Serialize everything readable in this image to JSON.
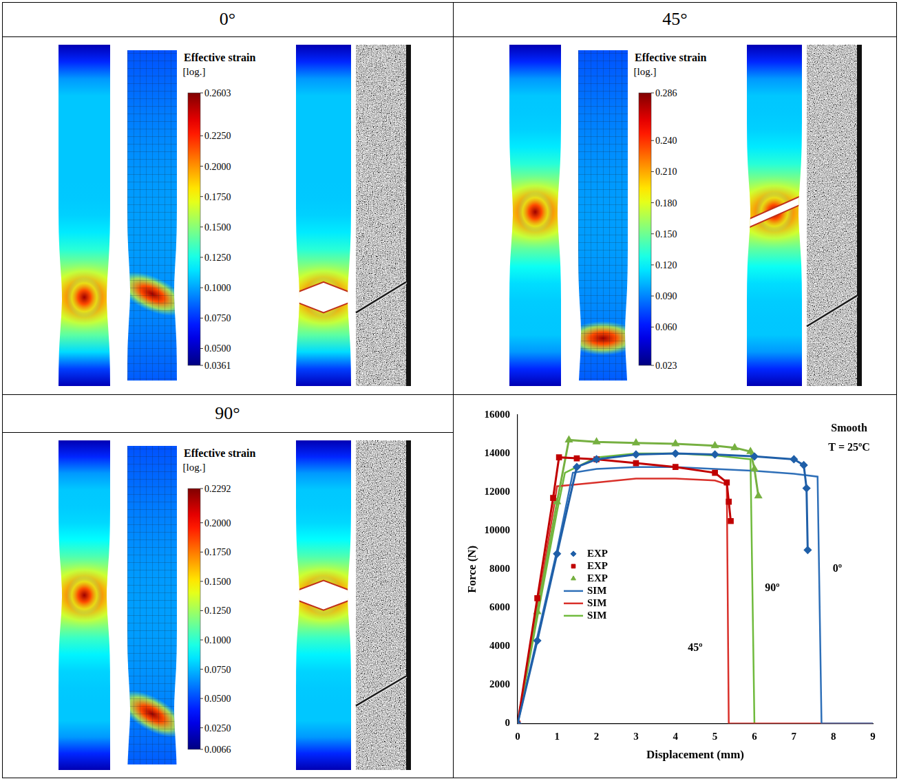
{
  "panels": [
    {
      "title": "0°",
      "colorbar": {
        "title": "Effective strain",
        "unit": "[log.]",
        "range": [
          0.0361,
          0.2603
        ],
        "ticks": [
          0.0361,
          {
            "value": 0.05,
            "label": "0.0500"
          },
          {
            "value": 0.075,
            "label": "0.0750"
          },
          {
            "value": 0.1,
            "label": "0.1000"
          },
          {
            "value": 0.125,
            "label": "0.1250"
          },
          {
            "value": 0.15,
            "label": "0.1500"
          },
          {
            "value": 0.175,
            "label": "0.1750"
          },
          {
            "value": 0.2,
            "label": "0.2000"
          },
          {
            "value": 0.225,
            "label": "0.2250"
          },
          0.2603
        ]
      }
    },
    {
      "title": "45°",
      "colorbar": {
        "title": "Effective strain",
        "unit": "[log.]",
        "range": [
          0.023,
          0.286
        ],
        "ticks": [
          0.023,
          {
            "value": 0.06,
            "label": "0.060"
          },
          {
            "value": 0.09,
            "label": "0.090"
          },
          {
            "value": 0.12,
            "label": "0.120"
          },
          {
            "value": 0.15,
            "label": "0.150"
          },
          {
            "value": 0.18,
            "label": "0.180"
          },
          {
            "value": 0.21,
            "label": "0.210"
          },
          {
            "value": 0.24,
            "label": "0.240"
          },
          0.286
        ]
      }
    },
    {
      "title": "90°",
      "colorbar": {
        "title": "Effective strain",
        "unit": "[log.]",
        "range": [
          0.0066,
          0.2292
        ],
        "ticks": [
          0.0066,
          {
            "value": 0.025,
            "label": "0.0250"
          },
          {
            "value": 0.05,
            "label": "0.0500"
          },
          {
            "value": 0.075,
            "label": "0.0750"
          },
          {
            "value": 0.1,
            "label": "0.1000"
          },
          {
            "value": 0.125,
            "label": "0.1250"
          },
          {
            "value": 0.15,
            "label": "0.1500"
          },
          {
            "value": 0.175,
            "label": "0.1750"
          },
          {
            "value": 0.2,
            "label": "0.2000"
          },
          0.2292
        ]
      }
    }
  ],
  "chart_data": {
    "type": "line",
    "x_label": "Displacement (mm)",
    "y_label": "Force (N)",
    "xlim": [
      0,
      9
    ],
    "xticks": [
      0,
      1,
      2,
      3,
      4,
      5,
      6,
      7,
      8,
      9
    ],
    "ylim": [
      0,
      16000
    ],
    "yticks": [
      0,
      2000,
      4000,
      6000,
      8000,
      10000,
      12000,
      14000,
      16000
    ],
    "grid": false,
    "legend": "left",
    "annotations": [
      {
        "text": "Smooth",
        "x": 8.4,
        "y": 15300
      },
      {
        "text": "T = 25ºC",
        "x": 8.4,
        "y": 14300
      },
      {
        "text": "0º",
        "x": 8.1,
        "y": 8000
      },
      {
        "text": "90º",
        "x": 6.45,
        "y": 7000
      },
      {
        "text": "45º",
        "x": 4.5,
        "y": 3900
      }
    ],
    "series": [
      {
        "name": "EXP",
        "color": "#1f5fa8",
        "marker": "diamond",
        "line_style": "solid",
        "x": [
          0,
          0.5,
          1.0,
          1.5,
          2,
          3,
          4,
          5,
          6,
          7,
          7.25,
          7.32,
          7.35
        ],
        "values": [
          0,
          4300,
          8800,
          13300,
          13700,
          13950,
          14000,
          13950,
          13850,
          13700,
          13400,
          12200,
          9000
        ]
      },
      {
        "name": "EXP",
        "color": "#c00000",
        "marker": "square",
        "line_style": "solid",
        "x": [
          0,
          0.5,
          0.9,
          1.05,
          1.5,
          2,
          3,
          4,
          5,
          5.3,
          5.35,
          5.4
        ],
        "values": [
          0,
          6500,
          11700,
          13800,
          13750,
          13700,
          13500,
          13300,
          13000,
          12500,
          11500,
          10500
        ]
      },
      {
        "name": "EXP",
        "color": "#76b041",
        "marker": "triangle",
        "line_style": "solid",
        "x": [
          0,
          0.5,
          1.0,
          1.3,
          2,
          3,
          4,
          5,
          5.5,
          5.9,
          6.0,
          6.1
        ],
        "values": [
          0,
          5800,
          11500,
          14700,
          14600,
          14550,
          14500,
          14400,
          14300,
          14100,
          13200,
          11800
        ]
      },
      {
        "name": "SIM",
        "color": "#2e6fb8",
        "marker": "none",
        "line_style": "solid",
        "x": [
          0,
          0.5,
          1.0,
          1.4,
          2,
          3,
          4,
          5,
          6,
          7,
          7.6,
          7.7,
          9
        ],
        "values": [
          0,
          4500,
          9000,
          13000,
          13200,
          13300,
          13300,
          13200,
          13100,
          12950,
          12800,
          0,
          0
        ]
      },
      {
        "name": "SIM",
        "color": "#d9302a",
        "marker": "none",
        "line_style": "solid",
        "x": [
          0,
          0.5,
          0.9,
          1.0,
          1.5,
          2,
          3,
          4,
          5,
          5.3,
          5.35,
          9
        ],
        "values": [
          0,
          6000,
          11000,
          12300,
          12400,
          12500,
          12700,
          12700,
          12600,
          12400,
          0,
          0
        ]
      },
      {
        "name": "SIM",
        "color": "#6fba3c",
        "marker": "none",
        "line_style": "solid",
        "x": [
          0,
          0.5,
          1.0,
          1.2,
          2,
          3,
          4,
          5,
          5.9,
          6.0
        ],
        "values": [
          0,
          5500,
          11000,
          13000,
          13800,
          14000,
          14000,
          13900,
          13700,
          0
        ]
      }
    ]
  }
}
